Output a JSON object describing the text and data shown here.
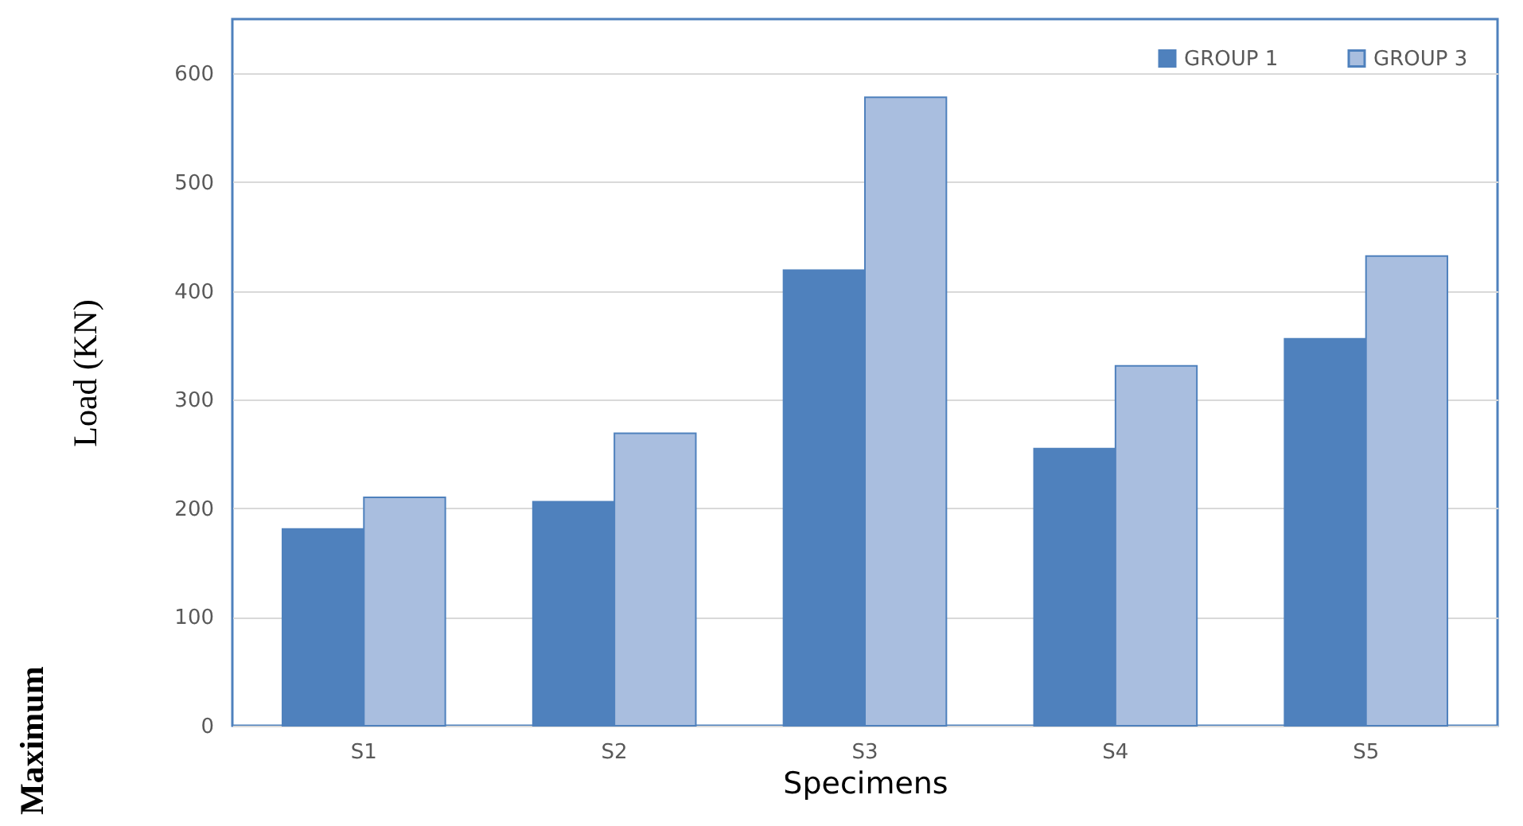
{
  "chart_data": {
    "type": "bar",
    "xlabel": "Specimens",
    "ylabel": "Load (KN)",
    "annotations": [
      "Maximum"
    ],
    "categories": [
      "S1",
      "S2",
      "S3",
      "S4",
      "S5"
    ],
    "series": [
      {
        "name": "GROUP 1",
        "color": "#4f81bd",
        "values": [
          181,
          206,
          419,
          255,
          356
        ]
      },
      {
        "name": "GROUP 3",
        "color": "#a9bedf",
        "values": [
          210,
          269,
          578,
          331,
          432
        ]
      }
    ],
    "ylim": [
      0,
      650
    ],
    "yticks": [
      0,
      100,
      200,
      300,
      400,
      500,
      600
    ],
    "grid": "y",
    "legend": "top right"
  }
}
